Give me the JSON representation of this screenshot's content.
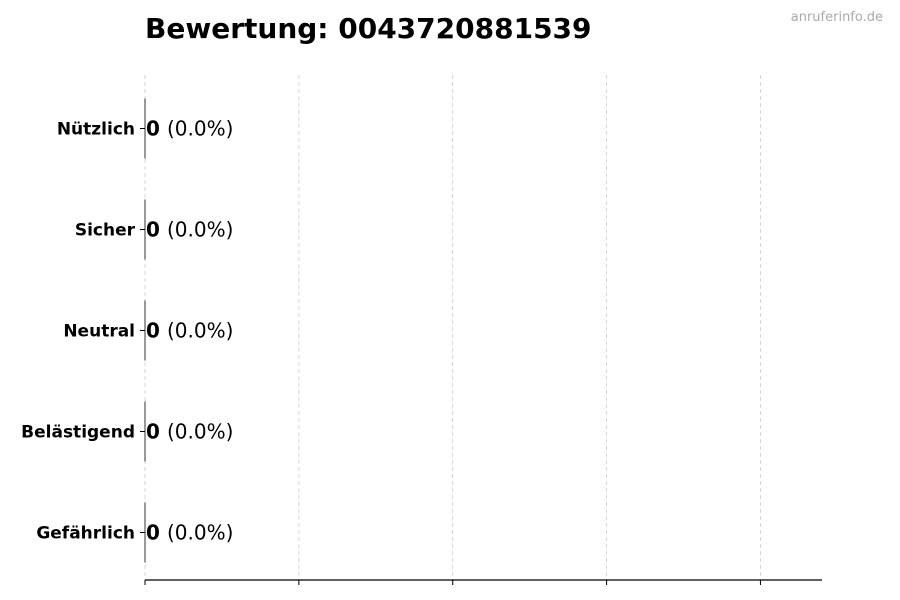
{
  "chart_data": {
    "type": "bar",
    "orientation": "horizontal",
    "title": "Bewertung: 0043720881539",
    "watermark": "anruferinfo.de",
    "categories": [
      "Nützlich",
      "Sicher",
      "Neutral",
      "Belästigend",
      "Gefährlich"
    ],
    "values": [
      0,
      0,
      0,
      0,
      0
    ],
    "value_labels": [
      "0",
      "0",
      "0",
      "0",
      "0"
    ],
    "percent_labels": [
      "(0.0%)",
      "(0.0%)",
      "(0.0%)",
      "(0.0%)",
      "(0.0%)"
    ],
    "xlim": [
      0,
      4.4
    ],
    "x_ticks": [
      0,
      1,
      2,
      3,
      4
    ],
    "grid": "x dashed",
    "xlabel": "",
    "ylabel": ""
  }
}
